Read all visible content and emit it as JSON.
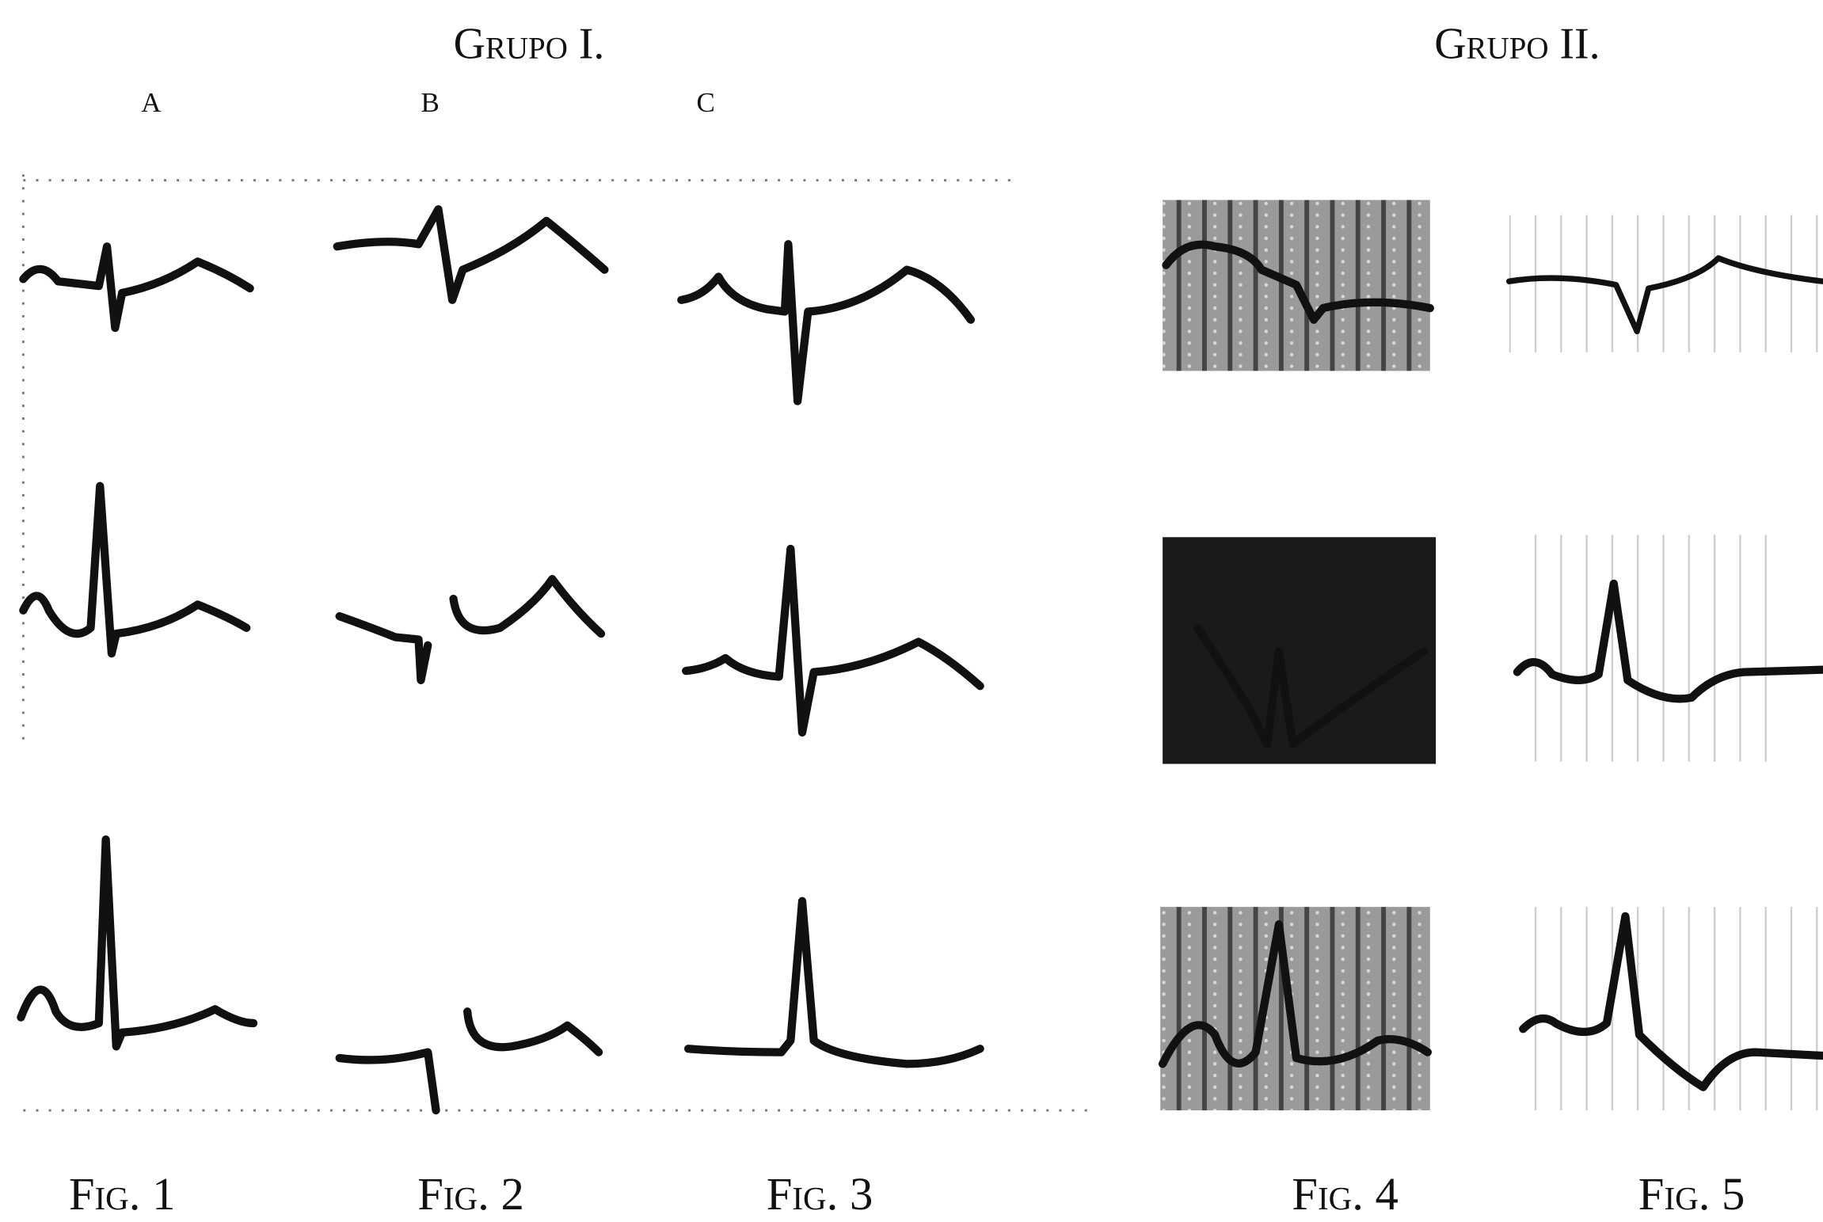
{
  "header": {
    "groups": [
      "Grupo I.",
      "Grupo II."
    ],
    "columns": [
      "a",
      "b",
      "c"
    ]
  },
  "figures": [
    "Fig. 1",
    "Fig. 2",
    "Fig. 3",
    "Fig. 4",
    "Fig. 5"
  ]
}
